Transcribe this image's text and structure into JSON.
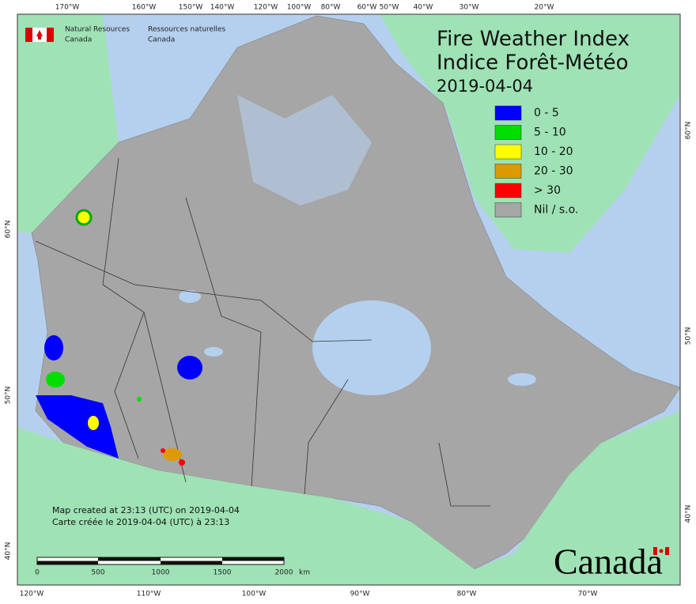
{
  "header": {
    "agency_en": [
      "Natural Resources",
      "Canada"
    ],
    "agency_fr": [
      "Ressources naturelles",
      "Canada"
    ]
  },
  "title": {
    "line1": "Fire Weather Index",
    "line2": "Indice Forêt-Météo",
    "date": "2019-04-04"
  },
  "legend": [
    {
      "label": "0 - 5",
      "color": "#0000ff"
    },
    {
      "label": "5 - 10",
      "color": "#00dd00"
    },
    {
      "label": "10 - 20",
      "color": "#ffff00"
    },
    {
      "label": "20 - 30",
      "color": "#dd9900"
    },
    {
      "label": "> 30",
      "color": "#ff0000"
    },
    {
      "label": "Nil / s.o.",
      "color": "#a6a6a6"
    }
  ],
  "graticule": {
    "top": [
      "170°W",
      "160°W",
      "150°W",
      "140°W",
      "120°W",
      "100°W",
      "80°W",
      "60°W",
      "50°W",
      "40°W",
      "30°W",
      "20°W"
    ],
    "bottom": [
      "120°W",
      "110°W",
      "100°W",
      "90°W",
      "80°W",
      "70°W"
    ],
    "left": [
      "60°N",
      "50°N",
      "40°N"
    ],
    "right": [
      "60°N",
      "50°N",
      "40°N"
    ]
  },
  "notes": [
    "Map created at 23:13 (UTC) on 2019-04-04",
    "Carte créée le 2019-04-04 (UTC) à 23:13"
  ],
  "scale_bar": {
    "labels": [
      "0",
      "500",
      "1000",
      "1500",
      "2000"
    ],
    "unit": "km"
  },
  "wordmark": "Canada"
}
